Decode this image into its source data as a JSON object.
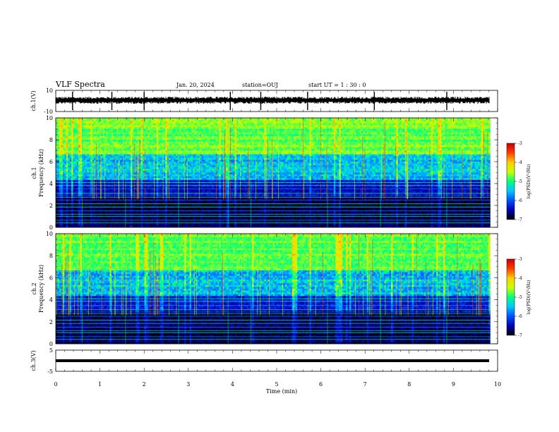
{
  "header": {
    "title": "VLF Spectra",
    "date": "Jan. 20, 2024",
    "station": "station=OUJ",
    "start": "start  UT =  1 : 30 : 0"
  },
  "chart_data": [
    {
      "type": "line",
      "panel": "ch1-waveform",
      "ylabel": "ch.1(V)",
      "ylim": [
        -10,
        10
      ],
      "yticks": [
        "10",
        "-10"
      ],
      "xlim": [
        0,
        10
      ],
      "description_level": 0,
      "spikes_min": [
        0.38,
        1.27,
        2.0,
        3.95,
        4.64,
        5.7,
        7.21,
        8.85
      ]
    },
    {
      "type": "heatmap",
      "panel": "ch1-spectrogram",
      "ylabel": "ch.1\nFrequency (kHz)",
      "ylim": [
        0,
        10
      ],
      "yticks": [
        "0",
        "2",
        "4",
        "6",
        "8",
        "10"
      ],
      "xlim": [
        0,
        10
      ],
      "colorbar": {
        "label": "log(PSD)(V²/Hz)",
        "range": [
          -7,
          -3
        ],
        "ticks": [
          "-3",
          "-4",
          "-5",
          "-6",
          "-7"
        ]
      }
    },
    {
      "type": "heatmap",
      "panel": "ch2-spectrogram",
      "ylabel": "ch.2\nFrequency (kHz)",
      "ylim": [
        0,
        10
      ],
      "yticks": [
        "0",
        "2",
        "4",
        "6",
        "8",
        "10"
      ],
      "xlim": [
        0,
        10
      ],
      "colorbar": {
        "label": "log(PSD)(V²/Hz)",
        "range": [
          -7,
          -3
        ],
        "ticks": [
          "-3",
          "-4",
          "-5",
          "-6",
          "-7"
        ]
      }
    },
    {
      "type": "line",
      "panel": "ch3-waveform",
      "ylabel": "ch.3(V)",
      "ylim": [
        -5,
        5
      ],
      "yticks": [
        "5",
        "-5"
      ],
      "xlim": [
        0,
        10
      ],
      "description_level": -1
    }
  ],
  "xaxis": {
    "label": "Time  (min)",
    "ticks": [
      "0",
      "1",
      "2",
      "3",
      "4",
      "5",
      "6",
      "7",
      "8",
      "9",
      "10"
    ]
  },
  "colors": {
    "cmap": [
      "#000000",
      "#0000b4",
      "#0050ff",
      "#00c8ff",
      "#00ff80",
      "#c8ff00",
      "#ffd000",
      "#ff3c00",
      "#c80000",
      "#ffffff"
    ]
  }
}
